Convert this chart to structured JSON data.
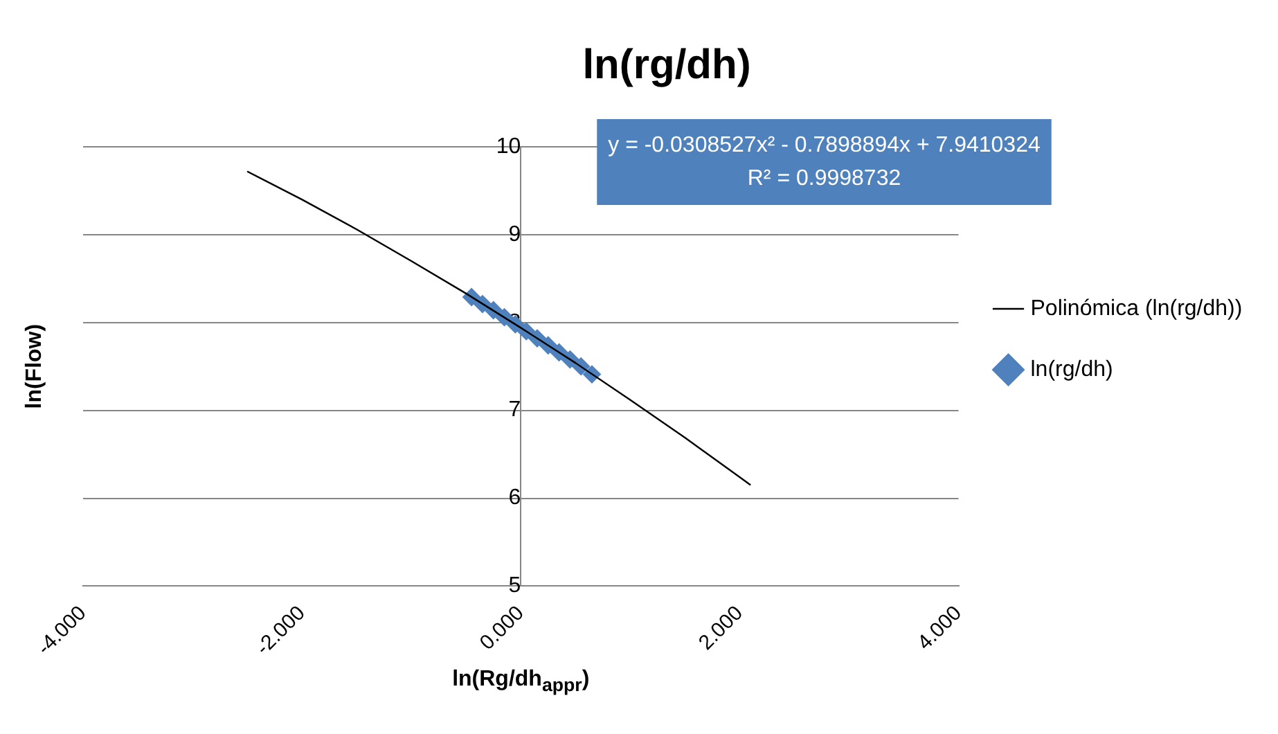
{
  "chart_data": {
    "type": "scatter",
    "title": "ln(rg/dh)",
    "xlabel": "ln(Rg/dh$_{appr}$)",
    "ylabel": "ln(Flow)",
    "annotations": [
      "y = -0.0308527x² - 0.7898894x + 7.9410324",
      "R² = 0.9998732"
    ],
    "xlim": [
      -4,
      4
    ],
    "xticks": [
      {
        "value": -4,
        "label": "-4.000"
      },
      {
        "value": -2,
        "label": "-2.000"
      },
      {
        "value": 0,
        "label": "0.000"
      },
      {
        "value": 2,
        "label": "2.000"
      },
      {
        "value": 4,
        "label": "4.000"
      }
    ],
    "ylim": [
      5,
      10
    ],
    "yticks": [
      5,
      6,
      7,
      8,
      9,
      10
    ],
    "grid": "y",
    "legend": "right",
    "series": [
      {
        "name": "ln(rg/dh)",
        "color": "#4f81bd",
        "marker": "diamond",
        "x": [
          -0.45,
          -0.35,
          -0.25,
          -0.15,
          -0.05,
          0.05,
          0.15,
          0.25,
          0.35,
          0.45,
          0.55,
          0.65
        ],
        "values": [
          8.29,
          8.21,
          8.14,
          8.06,
          7.98,
          7.9,
          7.82,
          7.74,
          7.66,
          7.58,
          7.5,
          7.41
        ]
      },
      {
        "name": "Polinómica (ln(rg/dh))",
        "type": "line",
        "color": "#000000",
        "marker": "none",
        "x": [
          -2.5,
          -2,
          -1.5,
          -1,
          -0.5,
          0,
          0.5,
          1,
          1.5,
          2,
          2.1
        ],
        "values": [
          9.72,
          9.4,
          9.06,
          8.7,
          8.33,
          7.94,
          7.54,
          7.12,
          6.69,
          6.24,
          6.15
        ]
      }
    ]
  }
}
